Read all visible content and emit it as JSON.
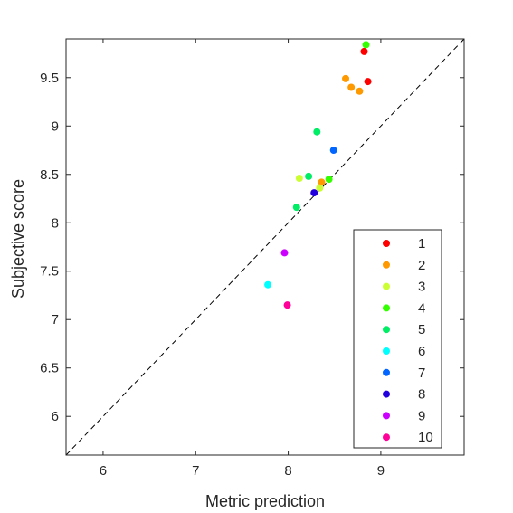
{
  "chart_data": {
    "type": "scatter",
    "xlabel": "Metric prediction",
    "ylabel": "Subjective score",
    "xlim": [
      5.6,
      9.9
    ],
    "ylim": [
      5.6,
      9.9
    ],
    "xticks": [
      6,
      7,
      8,
      9
    ],
    "yticks": [
      6,
      6.5,
      7,
      7.5,
      8,
      8.5,
      9,
      9.5
    ],
    "x_tick_labels": [
      "6",
      "7",
      "8",
      "9"
    ],
    "y_tick_labels": [
      "6",
      "6.5",
      "7",
      "7.5",
      "8",
      "8.5",
      "9",
      "9.5"
    ],
    "reference_line": "y = x (dashed)",
    "grid": false,
    "legend_position": "bottom-right",
    "series": [
      {
        "name": "1",
        "color": "#ff0000",
        "points": [
          [
            8.82,
            9.77
          ],
          [
            8.86,
            9.46
          ]
        ]
      },
      {
        "name": "2",
        "color": "#ff9900",
        "points": [
          [
            8.62,
            9.49
          ],
          [
            8.68,
            9.4
          ],
          [
            8.77,
            9.36
          ],
          [
            8.36,
            8.42
          ]
        ]
      },
      {
        "name": "3",
        "color": "#ccff33",
        "points": [
          [
            8.12,
            8.46
          ],
          [
            8.34,
            8.36
          ]
        ]
      },
      {
        "name": "4",
        "color": "#33ff00",
        "points": [
          [
            8.84,
            9.84
          ],
          [
            8.44,
            8.45
          ]
        ]
      },
      {
        "name": "5",
        "color": "#00ee66",
        "points": [
          [
            8.31,
            8.94
          ],
          [
            8.22,
            8.48
          ],
          [
            8.09,
            8.16
          ]
        ]
      },
      {
        "name": "6",
        "color": "#00ffff",
        "points": [
          [
            7.78,
            7.36
          ]
        ]
      },
      {
        "name": "7",
        "color": "#0066ff",
        "points": [
          [
            8.49,
            8.75
          ]
        ]
      },
      {
        "name": "8",
        "color": "#2200dd",
        "points": [
          [
            8.28,
            8.31
          ]
        ]
      },
      {
        "name": "9",
        "color": "#cc00ff",
        "points": [
          [
            7.96,
            7.69
          ]
        ]
      },
      {
        "name": "10",
        "color": "#ff0099",
        "points": [
          [
            7.99,
            7.15
          ]
        ]
      }
    ]
  }
}
